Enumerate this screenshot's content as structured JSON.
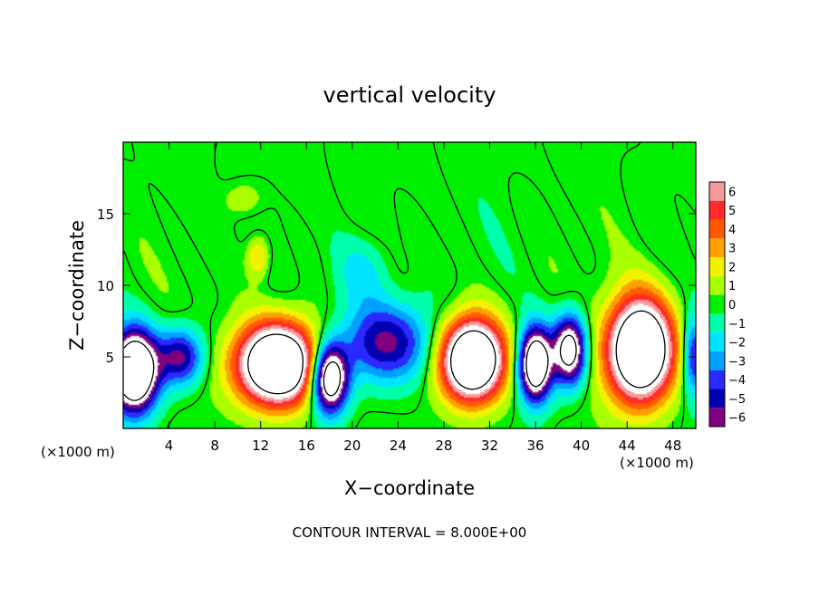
{
  "chart_data": {
    "type": "heatmap",
    "title": "vertical velocity",
    "xlabel": "X−coordinate",
    "ylabel": "Z−coordinate",
    "x_unit": "(×1000 m)",
    "y_unit": "(×1000 m)",
    "footer": "CONTOUR INTERVAL = 8.000E+00",
    "xlim": [
      0,
      50
    ],
    "ylim": [
      0,
      20
    ],
    "x_ticks": [
      4,
      8,
      12,
      16,
      20,
      24,
      28,
      32,
      36,
      40,
      44,
      48
    ],
    "y_ticks": [
      5,
      10,
      15
    ],
    "colorbar": {
      "labels": [
        "6",
        "5",
        "4",
        "3",
        "2",
        "1",
        "0",
        "−1",
        "−2",
        "−3",
        "−4",
        "−5",
        "−6"
      ],
      "values": [
        6,
        5,
        4,
        3,
        2,
        1,
        0,
        -1,
        -2,
        -3,
        -4,
        -5,
        -6
      ],
      "colors": [
        "#f49a9a",
        "#ff2a2a",
        "#ff5a00",
        "#ffa000",
        "#f2f200",
        "#aaff00",
        "#00ee00",
        "#00ffaa",
        "#00e4ff",
        "#00a0ff",
        "#2a2aff",
        "#0000b0",
        "#800080"
      ]
    },
    "series": [
      {
        "kind": "updraft",
        "cx": 13.5,
        "cz": 4.5,
        "rx": 4.5,
        "rz": 3.6,
        "w": 14
      },
      {
        "kind": "updraft",
        "cx": 30.5,
        "cz": 4.8,
        "rx": 3.5,
        "rz": 3.6,
        "w": 14
      },
      {
        "kind": "updraft",
        "cx": 45.2,
        "cz": 5.5,
        "rx": 3.6,
        "rz": 4.5,
        "w": 14
      },
      {
        "kind": "updraft",
        "cx": 11.8,
        "cz": 12.0,
        "rx": 1.2,
        "rz": 1.8,
        "w": 3
      },
      {
        "kind": "updraft",
        "cx": 10.5,
        "cz": 16.0,
        "rx": 2.0,
        "rz": 1.5,
        "w": 1.5
      },
      {
        "kind": "downdraft",
        "cx": 1.0,
        "cz": 4.0,
        "rx": 2.5,
        "rz": 3.5,
        "w": -14
      },
      {
        "kind": "downdraft",
        "cx": 5.0,
        "cz": 5.0,
        "rx": 2.5,
        "rz": 2.5,
        "w": -6
      },
      {
        "kind": "downdraft",
        "cx": 18.0,
        "cz": 3.5,
        "rx": 2.0,
        "rz": 3.0,
        "w": -12
      },
      {
        "kind": "downdraft",
        "cx": 23.0,
        "cz": 6.0,
        "rx": 5.0,
        "rz": 3.5,
        "w": -6
      },
      {
        "kind": "downdraft",
        "cx": 36.0,
        "cz": 4.5,
        "rx": 1.8,
        "rz": 3.2,
        "w": -12
      },
      {
        "kind": "downdraft",
        "cx": 39.0,
        "cz": 5.5,
        "rx": 1.8,
        "rz": 3.0,
        "w": -10
      },
      {
        "kind": "downdraft",
        "cx": 49.8,
        "cz": 5.0,
        "rx": 1.2,
        "rz": 3.5,
        "w": -5
      },
      {
        "kind": "downdraft",
        "cx": 21.0,
        "cz": 11.0,
        "rx": 3.0,
        "rz": 3.0,
        "w": -2
      }
    ]
  }
}
